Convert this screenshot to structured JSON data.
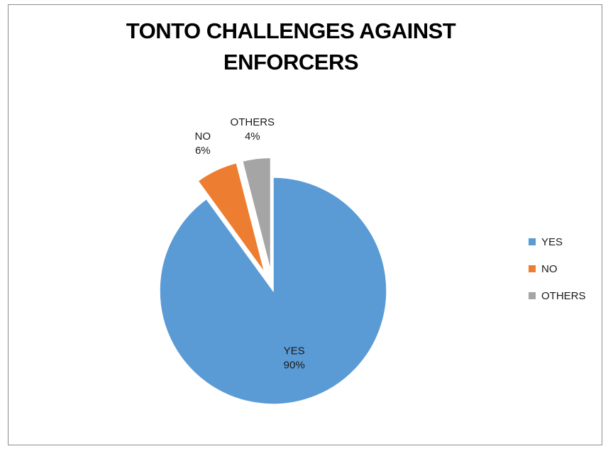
{
  "chart_data": {
    "type": "pie",
    "title": "TONTO CHALLENGES AGAINST ENFORCERS",
    "categories": [
      "YES",
      "NO",
      "OTHERS"
    ],
    "values": [
      90,
      6,
      4
    ],
    "data_labels": [
      {
        "name": "YES",
        "value": "90%"
      },
      {
        "name": "NO",
        "value": "6%"
      },
      {
        "name": "OTHERS",
        "value": "4%"
      }
    ],
    "colors": [
      "#5b9bd5",
      "#ed7d31",
      "#a5a5a5"
    ],
    "exploded": true,
    "legend": {
      "position": "right",
      "entries": [
        "YES",
        "NO",
        "OTHERS"
      ]
    }
  }
}
